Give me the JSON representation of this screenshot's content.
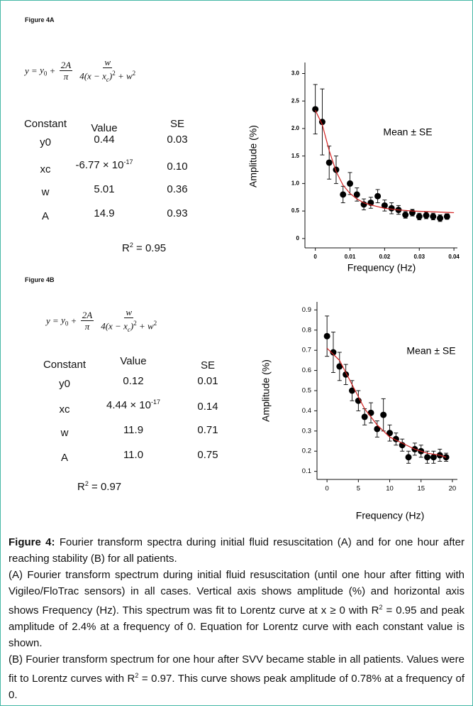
{
  "figure_a": {
    "label": "Figure 4A",
    "equation": {
      "y": "y",
      "eq": "=",
      "y0": "y",
      "y0_sub": "0",
      "plus": "+",
      "frac1_num": "2A",
      "frac1_den": "π",
      "frac2_num": "w",
      "frac2_den": "4(x − x",
      "frac2_den_sub": "c",
      "frac2_den_close": ")",
      "frac2_den_sup": "2",
      "frac2_den_rest": " + w",
      "frac2_den_sup2": "2"
    },
    "table": {
      "header": [
        "Constant",
        "Value",
        "SE"
      ],
      "rows": [
        [
          "y0",
          "0.44",
          "0.03"
        ],
        [
          "xc",
          {
            "text": "-6.77 × 10",
            "sup": "-17"
          },
          "0.10"
        ],
        [
          "w",
          "5.01",
          "0.36"
        ],
        [
          "A",
          "14.9",
          "0.93"
        ]
      ]
    },
    "r2": {
      "base": "R",
      "sup": "2",
      "rest": " = 0.95"
    }
  },
  "figure_b": {
    "label": "Figure 4B",
    "equation": {
      "y": "y",
      "eq": "=",
      "y0": "y",
      "y0_sub": "0",
      "plus": "+",
      "frac1_num": "2A",
      "frac1_den": "π",
      "frac2_num": "w",
      "frac2_den": "4(x − x",
      "frac2_den_sub": "c",
      "frac2_den_close": ")",
      "frac2_den_sup": "2",
      "frac2_den_rest": " + w",
      "frac2_den_sup2": "2"
    },
    "table": {
      "header": [
        "Constant",
        "Value",
        "SE"
      ],
      "rows": [
        [
          "y0",
          "0.12",
          "0.01"
        ],
        [
          "xc",
          {
            "text": "4.44 × 10",
            "sup": "-17"
          },
          "0.14"
        ],
        [
          "w",
          "11.9",
          "0.71"
        ],
        [
          "A",
          "11.0",
          "0.75"
        ]
      ]
    },
    "r2": {
      "base": "R",
      "sup": "2",
      "rest": " = 0.97"
    }
  },
  "chart_data": [
    {
      "type": "scatter",
      "x_label": "Frequency (Hz)",
      "y_label": "Amplitude (%)",
      "annotation": "Mean ±  SE",
      "xlim": [
        -0.003,
        0.041
      ],
      "ylim": [
        -0.17,
        3.2
      ],
      "xticks": [
        0,
        0.01,
        0.02,
        0.03,
        0.04
      ],
      "yticks": [
        0,
        0.5,
        {
          "value": 1,
          "label": "1.0"
        },
        1.5,
        {
          "value": 2,
          "label": "2.0"
        },
        2.5,
        {
          "value": 3,
          "label": "3.0"
        }
      ],
      "series": [
        {
          "style": "points",
          "color": "#000000",
          "x": [
            0,
            0.002,
            0.004,
            0.006,
            0.008,
            0.01,
            0.012,
            0.014,
            0.016,
            0.018,
            0.02,
            0.022,
            0.024,
            0.026,
            0.028,
            0.03,
            0.032,
            0.034,
            0.036,
            0.038
          ],
          "values": [
            2.35,
            2.12,
            1.38,
            1.25,
            0.8,
            1.0,
            0.8,
            0.62,
            0.65,
            0.77,
            0.6,
            0.55,
            0.52,
            0.43,
            0.47,
            0.4,
            0.42,
            0.4,
            0.37,
            0.4
          ],
          "errors": [
            0.45,
            0.6,
            0.3,
            0.25,
            0.15,
            0.2,
            0.12,
            0.1,
            0.1,
            0.12,
            0.1,
            0.1,
            0.08,
            0.06,
            0.06,
            0.06,
            0.06,
            0.06,
            0.06,
            0.05
          ]
        },
        {
          "style": "line",
          "color": "#d42020",
          "x": [
            0,
            0.002,
            0.004,
            0.006,
            0.008,
            0.01,
            0.012,
            0.014,
            0.016,
            0.02,
            0.024,
            0.028,
            0.032,
            0.036,
            0.04
          ],
          "values": [
            2.33,
            2.07,
            1.6,
            1.22,
            0.97,
            0.82,
            0.72,
            0.65,
            0.61,
            0.55,
            0.52,
            0.5,
            0.49,
            0.48,
            0.47
          ]
        }
      ]
    },
    {
      "type": "scatter",
      "x_label": "Frequency (Hz)",
      "y_label": "Amplitude (%)",
      "annotation": "Mean ±  SE",
      "xlim": [
        -1.6,
        20.8
      ],
      "ylim": [
        0.06,
        0.94
      ],
      "xticks": [
        0,
        5,
        10,
        15,
        20
      ],
      "yticks": [
        0.1,
        0.2,
        0.3,
        0.4,
        0.5,
        0.6,
        0.7,
        0.8,
        0.9
      ],
      "series": [
        {
          "style": "points",
          "color": "#000000",
          "x": [
            0,
            1,
            2,
            3,
            4,
            5,
            6,
            7,
            8,
            9,
            10,
            11,
            12,
            13,
            14,
            15,
            16,
            17,
            18,
            19
          ],
          "values": [
            0.77,
            0.69,
            0.62,
            0.58,
            0.5,
            0.45,
            0.37,
            0.39,
            0.31,
            0.38,
            0.29,
            0.26,
            0.23,
            0.17,
            0.21,
            0.2,
            0.17,
            0.17,
            0.18,
            0.17
          ],
          "errors": [
            0.1,
            0.1,
            0.07,
            0.05,
            0.05,
            0.05,
            0.04,
            0.05,
            0.04,
            0.08,
            0.04,
            0.03,
            0.03,
            0.03,
            0.03,
            0.03,
            0.03,
            0.03,
            0.03,
            0.02
          ]
        },
        {
          "style": "line",
          "color": "#d42020",
          "x": [
            0,
            2,
            4,
            6,
            8,
            10,
            12,
            14,
            16,
            18,
            19
          ],
          "values": [
            0.71,
            0.65,
            0.53,
            0.41,
            0.33,
            0.27,
            0.24,
            0.21,
            0.19,
            0.18,
            0.17
          ]
        }
      ]
    }
  ],
  "caption": {
    "label": "Figure 4:",
    "text": " Fourier transform spectra during initial fluid resuscitation (A) and for one hour after reaching stability (B) for all patients.",
    "para_a": [
      "(A) Fourier transform spectrum during initial fluid resuscitation (until one hour after fitting with Vigileo/FloTrac sensors) in all cases. Vertical axis shows amplitude (%) and horizontal axis shows Frequency (Hz). This spectrum was fit to Lorentz curve at x ≥ 0 with R",
      "2",
      " = 0.95 and peak amplitude of 2.4% at a frequency of 0. Equation for Lorentz curve with each constant value is shown."
    ],
    "para_b": [
      "(B) Fourier transform spectrum for one hour after SVV became stable in all patients. Values were fit to Lorentz curves with R",
      "2",
      " = 0.97. This curve shows peak amplitude of 0.78% at a frequency of 0."
    ]
  }
}
